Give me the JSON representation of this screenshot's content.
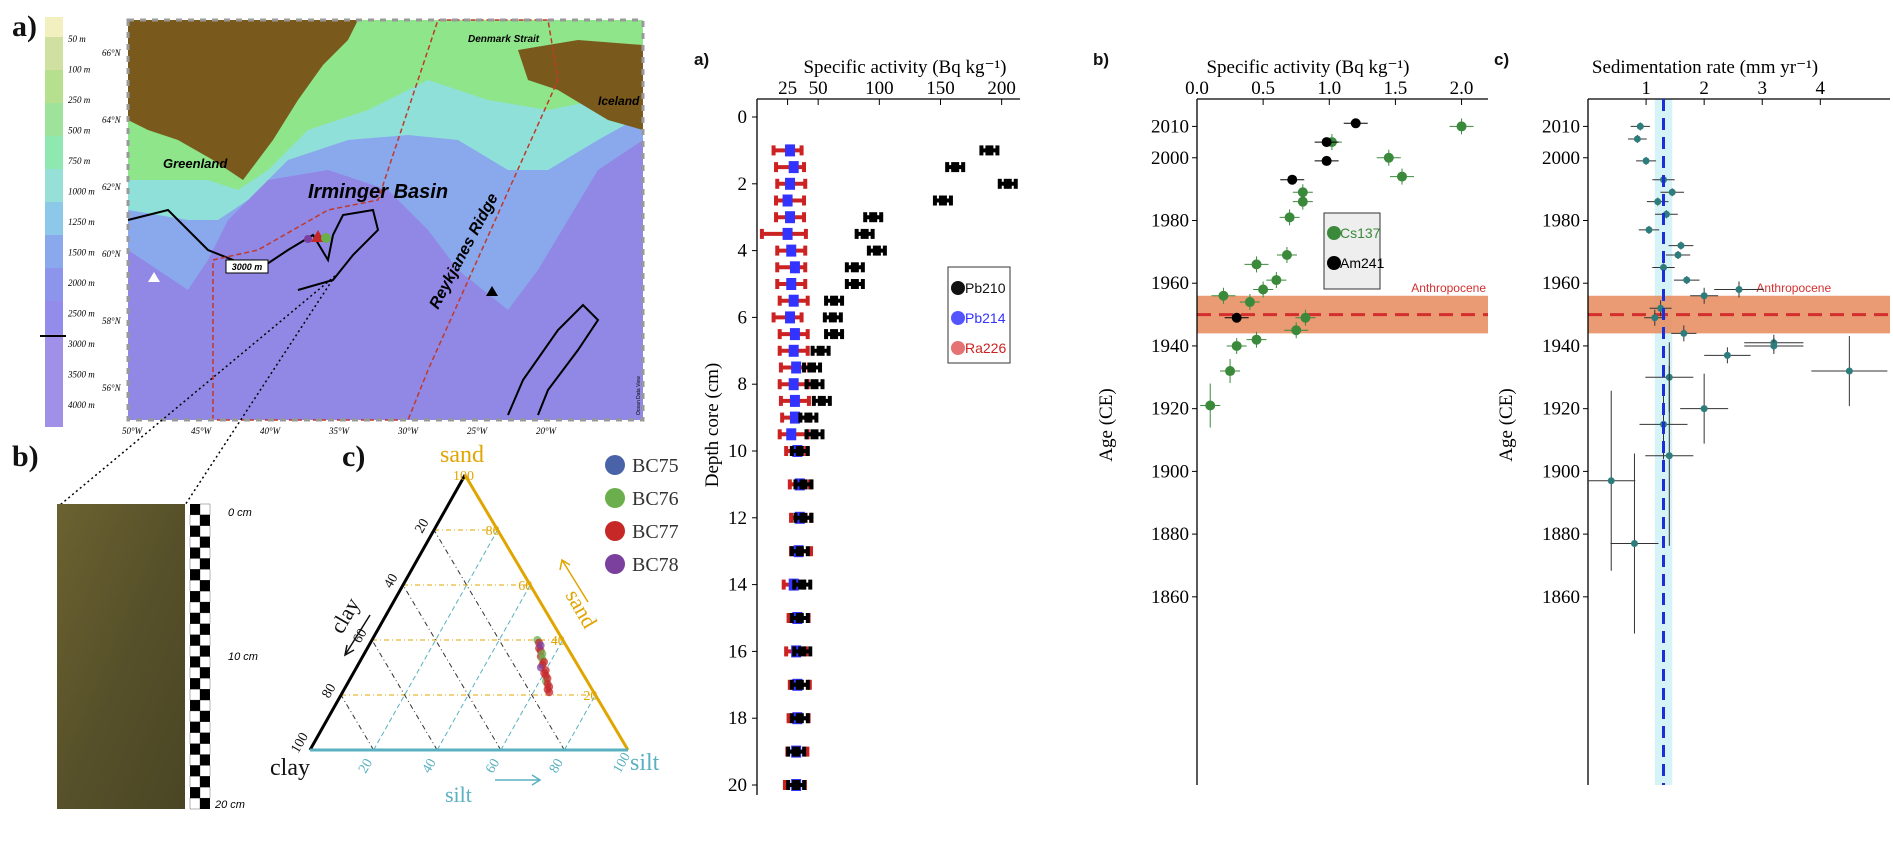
{
  "panel_labels": {
    "map": "a)",
    "core": "b)",
    "ternary": "c)",
    "activity": "a)",
    "age": "b)",
    "rate": "c)"
  },
  "map": {
    "depth_legend": [
      "50 m",
      "100 m",
      "250 m",
      "500 m",
      "750 m",
      "1000 m",
      "1250 m",
      "1500 m",
      "2000 m",
      "2500 m",
      "3000 m",
      "3500 m",
      "4000 m"
    ],
    "lat_labels": [
      "66°N",
      "64°N",
      "62°N",
      "60°N",
      "58°N",
      "56°N"
    ],
    "lon_labels": [
      "50°W",
      "45°W",
      "40°W",
      "35°W",
      "30°W",
      "25°W",
      "20°W"
    ],
    "names": {
      "greenland": "Greenland",
      "iceland": "Iceland",
      "denmark_strait": "Denmark Strait",
      "basin": "Irminger Basin",
      "ridge": "Reykjanes Ridge",
      "contour": "3000 m",
      "credit": "Ocean Data View"
    },
    "colors": {
      "land": "#7a5a1c",
      "deep": "#8f86e8",
      "shelf": "#8fe58a"
    }
  },
  "core": {
    "scale_labels": [
      "0 cm",
      "10 cm",
      "20 cm"
    ]
  },
  "ternary": {
    "corners": {
      "sand": "sand",
      "clay": "clay",
      "silt": "silt"
    },
    "arrows": {
      "clay": "clay",
      "sand": "sand",
      "silt": "silt"
    },
    "ticks": [
      "20",
      "40",
      "60",
      "80",
      "100"
    ],
    "legend": [
      {
        "label": "BC75",
        "color": "#4a63a8"
      },
      {
        "label": "BC76",
        "color": "#6aaf4c"
      },
      {
        "label": "BC77",
        "color": "#c62828"
      },
      {
        "label": "BC78",
        "color": "#7b3f9e"
      }
    ],
    "colors": {
      "sand": "#e0a500",
      "silt": "#5ab0c0",
      "clay": "#111111"
    }
  },
  "chart_data": [
    {
      "type": "scatter",
      "title": "Specific activity (Bq kg⁻¹)",
      "xlabel": "Specific activity (Bq kg⁻¹)",
      "ylabel": "Depth core (cm)",
      "xlim": [
        0,
        215
      ],
      "ylim": [
        0,
        20
      ],
      "x_ticks": [
        25,
        50,
        100,
        150,
        200
      ],
      "x_tick_labels": [
        "25",
        "50",
        "100",
        "150",
        "200"
      ],
      "y_ticks": [
        0,
        2,
        4,
        6,
        8,
        10,
        12,
        14,
        16,
        18,
        20
      ],
      "legend_position": "right",
      "series": [
        {
          "name": "Pb210",
          "color": "#000000",
          "points": [
            [
              190,
              1
            ],
            [
              162,
              1.5
            ],
            [
              205,
              2
            ],
            [
              152,
              2.5
            ],
            [
              95,
              3
            ],
            [
              88,
              3.5
            ],
            [
              98,
              4
            ],
            [
              80,
              4.5
            ],
            [
              80,
              5
            ],
            [
              63,
              5.5
            ],
            [
              62,
              6
            ],
            [
              63,
              6.5
            ],
            [
              52,
              7
            ],
            [
              45,
              7.5
            ],
            [
              47,
              8
            ],
            [
              53,
              8.5
            ],
            [
              42,
              9
            ],
            [
              47,
              9.5
            ],
            [
              35,
              10
            ],
            [
              38,
              11
            ],
            [
              38,
              12
            ],
            [
              35,
              13
            ],
            [
              37,
              14
            ],
            [
              35,
              15
            ],
            [
              37,
              16
            ],
            [
              35,
              17
            ],
            [
              35,
              18
            ],
            [
              32,
              19
            ],
            [
              32,
              20
            ]
          ]
        },
        {
          "name": "Pb214",
          "color": "#3333ff",
          "points": [
            [
              27,
              1
            ],
            [
              30,
              1.5
            ],
            [
              27,
              2
            ],
            [
              25,
              2.5
            ],
            [
              27,
              3
            ],
            [
              25,
              3.5
            ],
            [
              28,
              4
            ],
            [
              31,
              4.5
            ],
            [
              28,
              5
            ],
            [
              30,
              5.5
            ],
            [
              27,
              6
            ],
            [
              31,
              6.5
            ],
            [
              30,
              7
            ],
            [
              32,
              7.5
            ],
            [
              30,
              8
            ],
            [
              31,
              8.5
            ],
            [
              31,
              9
            ],
            [
              28,
              9.5
            ],
            [
              33,
              10
            ],
            [
              35,
              11
            ],
            [
              35,
              12
            ],
            [
              34,
              13
            ],
            [
              30,
              14
            ],
            [
              33,
              15
            ],
            [
              32,
              16
            ],
            [
              33,
              17
            ],
            [
              33,
              18
            ],
            [
              32,
              19
            ],
            [
              32,
              20
            ]
          ]
        },
        {
          "name": "Ra226",
          "color": "#cc2222",
          "points": [
            [
              25,
              1
            ],
            [
              27,
              1.5
            ],
            [
              28,
              2
            ],
            [
              27,
              2.5
            ],
            [
              27,
              3
            ],
            [
              22,
              3.5
            ],
            [
              28,
              4
            ],
            [
              28,
              4.5
            ],
            [
              28,
              5
            ],
            [
              30,
              5.5
            ],
            [
              25,
              6
            ],
            [
              30,
              6.5
            ],
            [
              30,
              7
            ],
            [
              31,
              7.5
            ],
            [
              30,
              8
            ],
            [
              31,
              8.5
            ],
            [
              32,
              9
            ],
            [
              30,
              9.5
            ],
            [
              32,
              10
            ],
            [
              35,
              11
            ],
            [
              36,
              12
            ],
            [
              36,
              13
            ],
            [
              30,
              14
            ],
            [
              34,
              15
            ],
            [
              32,
              16
            ],
            [
              35,
              17
            ],
            [
              34,
              18
            ],
            [
              33,
              19
            ],
            [
              31,
              20
            ]
          ]
        }
      ]
    },
    {
      "type": "scatter",
      "title": "Specific activity (Bq kg⁻¹)",
      "xlabel": "Specific activity (Bq kg⁻¹)",
      "ylabel": "Age (CE)",
      "xlim": [
        0,
        2.2
      ],
      "ylim": [
        1800,
        2013
      ],
      "x_ticks": [
        0,
        0.5,
        1,
        1.5,
        2
      ],
      "x_tick_labels": [
        "0.0",
        "0.5",
        "1.0",
        "1.5",
        "2.0"
      ],
      "y_ticks": [
        1860,
        1880,
        1900,
        1920,
        1940,
        1960,
        1980,
        2000,
        2010
      ],
      "legend_position": "center-right",
      "annotation": "Anthropocene",
      "anthropocene_line": 1950,
      "anthropocene_band": [
        1944,
        1956
      ],
      "series": [
        {
          "name": "Cs137",
          "color": "#3b8a3b",
          "points": [
            [
              2.0,
              2010
            ],
            [
              1.02,
              2005
            ],
            [
              1.45,
              2000
            ],
            [
              1.55,
              1994
            ],
            [
              0.8,
              1989
            ],
            [
              0.8,
              1986
            ],
            [
              0.7,
              1981
            ],
            [
              0.68,
              1969
            ],
            [
              0.45,
              1966
            ],
            [
              0.6,
              1961
            ],
            [
              0.5,
              1958
            ],
            [
              0.2,
              1956
            ],
            [
              0.4,
              1954
            ],
            [
              0.82,
              1949
            ],
            [
              0.75,
              1945
            ],
            [
              0.3,
              1940
            ],
            [
              0.45,
              1942
            ],
            [
              0.25,
              1932
            ],
            [
              0.1,
              1921
            ]
          ]
        },
        {
          "name": "Am241",
          "color": "#000000",
          "points": [
            [
              1.2,
              2011
            ],
            [
              0.98,
              2005
            ],
            [
              0.98,
              1999
            ],
            [
              0.72,
              1993
            ],
            [
              0.3,
              1949
            ]
          ]
        }
      ]
    },
    {
      "type": "scatter",
      "title": "Sedimentation rate (mm yr⁻¹)",
      "xlabel": "Sedimentation rate (mm yr⁻¹)",
      "ylabel": "Age (CE)",
      "xlim": [
        0,
        5.2
      ],
      "ylim": [
        1800,
        2013
      ],
      "x_ticks": [
        1,
        2,
        3,
        4
      ],
      "x_tick_labels": [
        "1",
        "2",
        "3",
        "4"
      ],
      "y_ticks": [
        1860,
        1880,
        1900,
        1920,
        1940,
        1960,
        1980,
        2000,
        2010
      ],
      "annotation": "Anthropocene",
      "anthropocene_line": 1950,
      "anthropocene_band": [
        1944,
        1956
      ],
      "mean_rate": 1.3,
      "mean_rate_band": [
        1.15,
        1.45
      ],
      "series": [
        {
          "name": "",
          "color": "#2e7d7d",
          "points": [
            [
              0.9,
              2010
            ],
            [
              0.85,
              2006
            ],
            [
              1.0,
              1999
            ],
            [
              1.3,
              1993
            ],
            [
              1.45,
              1989
            ],
            [
              1.2,
              1986
            ],
            [
              1.35,
              1982
            ],
            [
              1.05,
              1977
            ],
            [
              1.6,
              1972
            ],
            [
              1.55,
              1969
            ],
            [
              1.3,
              1965
            ],
            [
              1.7,
              1961
            ],
            [
              2.6,
              1958
            ],
            [
              2.0,
              1956
            ],
            [
              1.25,
              1952
            ],
            [
              1.15,
              1949
            ],
            [
              1.65,
              1944
            ],
            [
              3.2,
              1941
            ],
            [
              3.2,
              1940
            ],
            [
              2.4,
              1937
            ],
            [
              4.5,
              1932
            ],
            [
              1.4,
              1930
            ],
            [
              2.0,
              1920
            ],
            [
              1.3,
              1915
            ],
            [
              1.4,
              1905
            ],
            [
              0.4,
              1897
            ],
            [
              0.8,
              1877
            ]
          ]
        }
      ]
    }
  ]
}
